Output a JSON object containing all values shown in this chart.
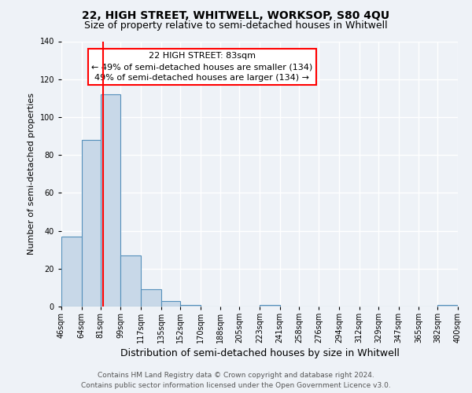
{
  "title": "22, HIGH STREET, WHITWELL, WORKSOP, S80 4QU",
  "subtitle": "Size of property relative to semi-detached houses in Whitwell",
  "xlabel": "Distribution of semi-detached houses by size in Whitwell",
  "ylabel": "Number of semi-detached properties",
  "bin_edges": [
    46,
    64,
    81,
    99,
    117,
    135,
    152,
    170,
    188,
    205,
    223,
    241,
    258,
    276,
    294,
    312,
    329,
    347,
    365,
    382,
    400
  ],
  "bin_labels": [
    "46sqm",
    "64sqm",
    "81sqm",
    "99sqm",
    "117sqm",
    "135sqm",
    "152sqm",
    "170sqm",
    "188sqm",
    "205sqm",
    "223sqm",
    "241sqm",
    "258sqm",
    "276sqm",
    "294sqm",
    "312sqm",
    "329sqm",
    "347sqm",
    "365sqm",
    "382sqm",
    "400sqm"
  ],
  "counts": [
    37,
    88,
    112,
    27,
    9,
    3,
    1,
    0,
    0,
    0,
    1,
    0,
    0,
    0,
    0,
    0,
    0,
    0,
    0,
    1
  ],
  "bar_color": "#c8d8e8",
  "bar_edgecolor": "#5590bb",
  "vline_x": 83,
  "vline_color": "red",
  "annotation_title": "22 HIGH STREET: 83sqm",
  "annotation_line1": "← 49% of semi-detached houses are smaller (134)",
  "annotation_line2": "49% of semi-detached houses are larger (134) →",
  "annotation_box_color": "white",
  "annotation_box_edgecolor": "red",
  "ylim": [
    0,
    140
  ],
  "yticks": [
    0,
    20,
    40,
    60,
    80,
    100,
    120,
    140
  ],
  "footer_line1": "Contains HM Land Registry data © Crown copyright and database right 2024.",
  "footer_line2": "Contains public sector information licensed under the Open Government Licence v3.0.",
  "bg_color": "#eef2f7",
  "grid_color": "white",
  "title_fontsize": 10,
  "subtitle_fontsize": 9,
  "xlabel_fontsize": 9,
  "ylabel_fontsize": 8,
  "tick_fontsize": 7,
  "annot_fontsize": 8,
  "footer_fontsize": 6.5
}
